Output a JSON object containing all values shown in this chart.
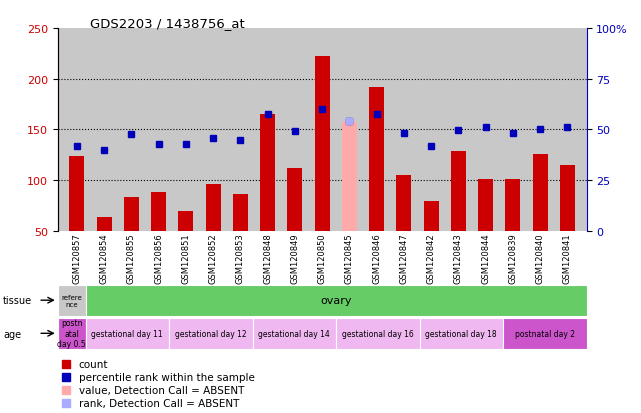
{
  "title": "GDS2203 / 1438756_at",
  "samples": [
    "GSM120857",
    "GSM120854",
    "GSM120855",
    "GSM120856",
    "GSM120851",
    "GSM120852",
    "GSM120853",
    "GSM120848",
    "GSM120849",
    "GSM120850",
    "GSM120845",
    "GSM120846",
    "GSM120847",
    "GSM120842",
    "GSM120843",
    "GSM120844",
    "GSM120839",
    "GSM120840",
    "GSM120841"
  ],
  "red_bars": [
    124,
    64,
    83,
    88,
    70,
    96,
    86,
    165,
    112,
    222,
    155,
    192,
    105,
    79,
    129,
    101,
    101,
    126,
    115
  ],
  "blue_squares": [
    134,
    130,
    145,
    136,
    136,
    142,
    140,
    165,
    148,
    170,
    158,
    165,
    146,
    134,
    149,
    152,
    146,
    150,
    152
  ],
  "absent_bar": [
    null,
    null,
    null,
    null,
    null,
    null,
    null,
    null,
    null,
    null,
    157,
    null,
    null,
    null,
    null,
    null,
    null,
    null,
    null
  ],
  "absent_rank": [
    null,
    null,
    null,
    null,
    null,
    null,
    null,
    null,
    null,
    null,
    158,
    null,
    null,
    null,
    null,
    null,
    null,
    null,
    null
  ],
  "ylim_left": [
    50,
    250
  ],
  "ylim_right": [
    0,
    100
  ],
  "left_yticks": [
    50,
    100,
    150,
    200,
    250
  ],
  "right_yticks": [
    0,
    25,
    50,
    75,
    100
  ],
  "right_ytick_labels": [
    "0",
    "25",
    "50",
    "75",
    "100%"
  ],
  "hlines": [
    100,
    150,
    200
  ],
  "tissue_ref_label": "refere\nnce",
  "tissue_ref_color": "#c8c8c8",
  "tissue_main_label": "ovary",
  "tissue_main_color": "#66cc66",
  "age_groups": [
    {
      "label": "postn\natal\nday 0.5",
      "color": "#cc55cc",
      "span": 1
    },
    {
      "label": "gestational day 11",
      "color": "#f0b8f0",
      "span": 3
    },
    {
      "label": "gestational day 12",
      "color": "#f0b8f0",
      "span": 3
    },
    {
      "label": "gestational day 14",
      "color": "#f0b8f0",
      "span": 3
    },
    {
      "label": "gestational day 16",
      "color": "#f0b8f0",
      "span": 3
    },
    {
      "label": "gestational day 18",
      "color": "#f0b8f0",
      "span": 3
    },
    {
      "label": "postnatal day 2",
      "color": "#cc55cc",
      "span": 3
    }
  ],
  "bar_color": "#cc0000",
  "blue_color": "#0000bb",
  "absent_bar_color": "#ffaaaa",
  "absent_rank_color": "#aaaaff",
  "bar_width": 0.55,
  "bg_color": "#c8c8c8",
  "legend_items": [
    {
      "color": "#cc0000",
      "label": "count"
    },
    {
      "color": "#0000bb",
      "label": "percentile rank within the sample"
    },
    {
      "color": "#ffaaaa",
      "label": "value, Detection Call = ABSENT"
    },
    {
      "color": "#aaaaff",
      "label": "rank, Detection Call = ABSENT"
    }
  ]
}
